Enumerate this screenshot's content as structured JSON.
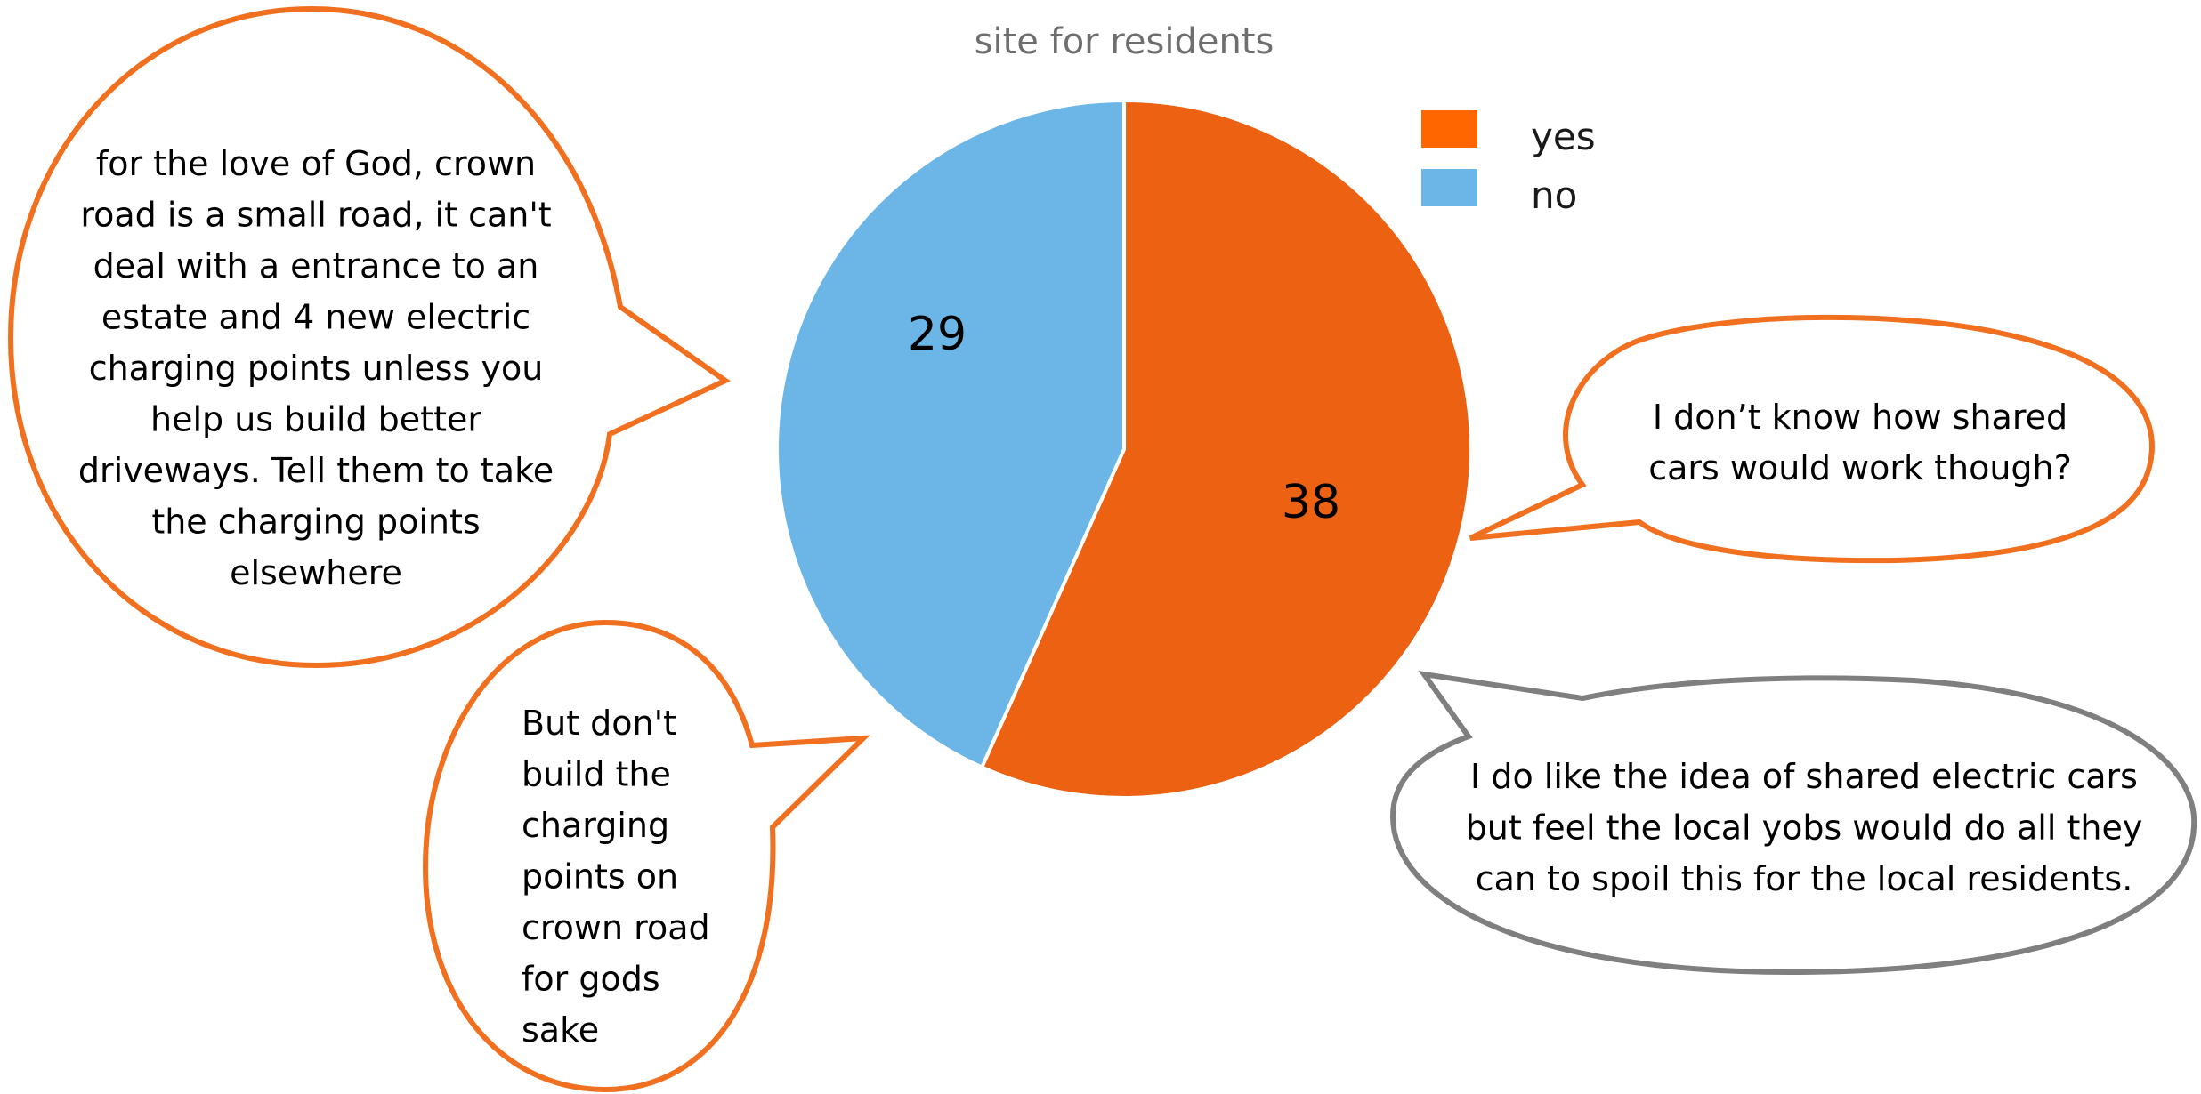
{
  "chart_data": {
    "type": "pie",
    "title": "site for residents",
    "categories": [
      "yes",
      "no"
    ],
    "values": [
      38,
      29
    ],
    "data_labels": [
      "38",
      "29"
    ],
    "legend": {
      "placement": "top-right",
      "entries": [
        "yes",
        "no"
      ]
    },
    "colors": {
      "yes": "#EC6112",
      "no": "#6BB6E6",
      "legend_yes": "#FF6600"
    },
    "annotations": [
      {
        "id": "left-top",
        "lines": [
          "for the love of God, crown",
          "road is a small road, it can't",
          "deal with a entrance to an",
          "estate and 4 new electric",
          "charging points unless you",
          "help us build better",
          "driveways. Tell them to take",
          "the charging points",
          "elsewhere"
        ],
        "border_color": "#F07020"
      },
      {
        "id": "left-bottom",
        "lines": [
          "But don't",
          "build the",
          "charging",
          "points on",
          "crown road",
          "for gods",
          "sake"
        ],
        "border_color": "#F07020"
      },
      {
        "id": "right-top",
        "lines": [
          "I don’t know how shared",
          "cars would work though?"
        ],
        "border_color": "#F07020"
      },
      {
        "id": "right-bottom",
        "lines": [
          "I do like the idea of shared electric cars",
          "but feel the local yobs would do all they",
          "can to spoil this for the local residents."
        ],
        "border_color": "#7F7F7F"
      }
    ]
  }
}
